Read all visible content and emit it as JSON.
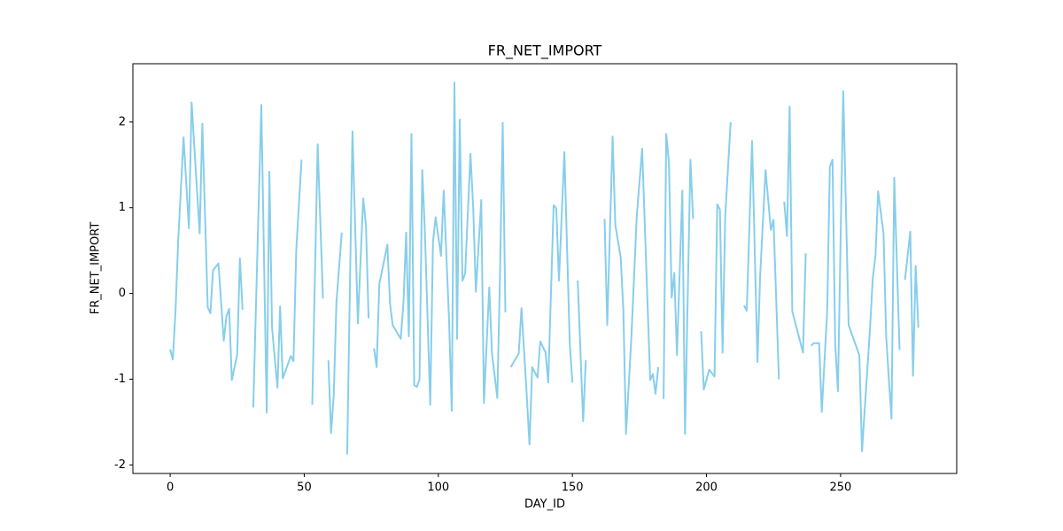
{
  "chart_data": {
    "type": "line",
    "title": "FR_NET_IMPORT",
    "x_label": "DAY_ID",
    "y_label": "FR_NET_IMPORT",
    "color": "#87ceeb",
    "x": [
      0,
      1,
      2,
      3,
      5,
      7,
      8,
      11,
      12,
      14,
      15,
      16,
      18,
      20,
      21,
      22,
      23,
      25,
      26,
      27,
      29,
      31,
      34,
      36,
      37,
      38,
      40,
      41,
      42,
      45,
      46,
      47,
      49,
      51,
      53,
      55,
      57,
      58,
      59,
      60,
      61,
      62,
      64,
      65,
      66,
      68,
      70,
      72,
      73,
      74,
      75,
      76,
      77,
      78,
      81,
      82,
      83,
      86,
      87,
      88,
      89,
      90,
      91,
      92,
      93,
      94,
      95,
      97,
      98,
      99,
      101,
      102,
      104,
      105,
      106,
      107,
      108,
      109,
      110,
      112,
      113,
      114,
      116,
      117,
      119,
      120,
      122,
      123,
      124,
      125,
      126,
      127,
      130,
      131,
      133,
      134,
      135,
      137,
      138,
      140,
      141,
      143,
      144,
      145,
      147,
      149,
      150,
      151,
      152,
      154,
      155,
      158,
      162,
      163,
      165,
      166,
      168,
      169,
      170,
      172,
      174,
      176,
      177,
      179,
      180,
      181,
      182,
      183,
      184,
      185,
      186,
      187,
      188,
      189,
      191,
      192,
      194,
      195,
      196,
      198,
      199,
      201,
      203,
      204,
      205,
      206,
      207,
      209,
      212,
      214,
      215,
      217,
      219,
      220,
      222,
      224,
      225,
      227,
      228,
      229,
      230,
      231,
      232,
      236,
      237,
      238,
      239,
      240,
      242,
      243,
      245,
      246,
      247,
      248,
      249,
      251,
      253,
      257,
      258,
      261,
      262,
      263,
      264,
      266,
      267,
      268,
      269,
      270,
      272,
      273,
      274,
      276,
      277,
      278,
      279
    ],
    "values": [
      -0.65,
      -0.77,
      -0.21,
      0.62,
      1.82,
      0.76,
      2.23,
      0.7,
      1.98,
      -0.16,
      -0.23,
      0.27,
      0.35,
      -0.55,
      -0.26,
      -0.18,
      -1.01,
      -0.71,
      0.41,
      -0.19,
      null,
      -1.33,
      2.2,
      -1.39,
      1.42,
      -0.4,
      -1.1,
      -0.15,
      -0.99,
      -0.73,
      -0.79,
      0.5,
      1.56,
      null,
      -1.3,
      1.74,
      -0.06,
      null,
      -0.78,
      -1.63,
      -1.2,
      -0.1,
      0.71,
      null,
      -1.88,
      1.89,
      -0.35,
      1.11,
      0.8,
      -0.29,
      null,
      -0.64,
      -0.86,
      0.11,
      0.57,
      -0.12,
      -0.37,
      -0.53,
      -0.1,
      0.71,
      -0.5,
      1.86,
      -1.07,
      -1.09,
      -1.0,
      1.44,
      0.7,
      -1.3,
      0.6,
      0.89,
      0.44,
      1.2,
      -0.3,
      -1.37,
      2.46,
      -0.53,
      2.03,
      0.15,
      0.23,
      1.63,
      1.0,
      0.02,
      1.09,
      -1.28,
      0.07,
      -0.7,
      -1.22,
      0.2,
      1.99,
      -0.22,
      null,
      -0.86,
      -0.7,
      -0.17,
      -1.2,
      -1.76,
      -0.86,
      -0.98,
      -0.56,
      -0.69,
      -1.04,
      1.03,
      0.99,
      0.15,
      1.65,
      -0.59,
      -1.04,
      null,
      0.15,
      -1.49,
      -0.78,
      null,
      0.87,
      -0.37,
      1.83,
      0.8,
      0.42,
      -0.2,
      -1.64,
      -0.5,
      0.9,
      1.69,
      0.8,
      -1.01,
      -0.94,
      -1.17,
      -0.86,
      null,
      -1.23,
      1.86,
      1.52,
      -0.05,
      0.24,
      -0.72,
      1.2,
      -1.64,
      1.56,
      0.87,
      null,
      -0.44,
      -1.12,
      -0.89,
      -0.97,
      1.04,
      0.98,
      -0.69,
      0.9,
      2.0,
      null,
      -0.14,
      -0.2,
      1.78,
      -0.8,
      0.2,
      1.44,
      0.74,
      0.86,
      -1.0,
      null,
      1.07,
      0.67,
      2.18,
      -0.21,
      -0.69,
      0.47,
      null,
      -0.61,
      -0.58,
      -0.58,
      -1.38,
      -0.2,
      1.48,
      1.56,
      -0.6,
      -1.14,
      2.36,
      -0.37,
      -0.72,
      -1.84,
      -0.4,
      0.17,
      0.44,
      1.19,
      0.7,
      -0.5,
      -1.0,
      -1.46,
      1.35,
      -0.66,
      null,
      0.16,
      0.72,
      -0.96,
      0.32,
      -0.4
    ],
    "xlim": [
      -13.9,
      293.3
    ],
    "ylim": [
      -2.1,
      2.68
    ],
    "xticks": [
      0,
      50,
      100,
      150,
      200,
      250
    ],
    "yticks": [
      -2,
      -1,
      0,
      1,
      2
    ]
  }
}
